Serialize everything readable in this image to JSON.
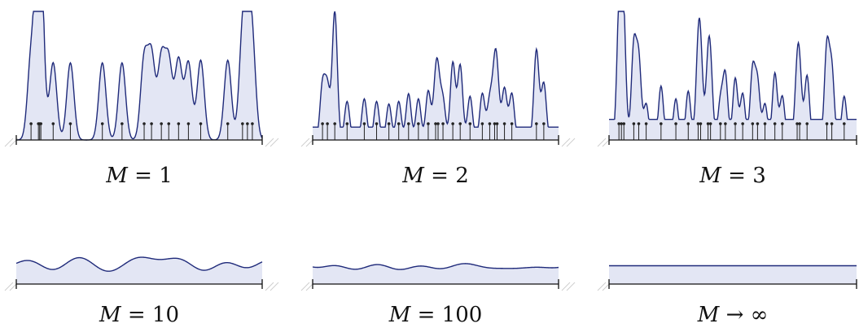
{
  "panels": [
    {
      "id": "m1",
      "caption_var": "M",
      "caption_op": " = ",
      "caption_val": "1",
      "mode": "peaks",
      "width": 6.2,
      "points": [
        0.06,
        0.09,
        0.095,
        0.1,
        0.15,
        0.22,
        0.35,
        0.43,
        0.52,
        0.55,
        0.59,
        0.62,
        0.66,
        0.7,
        0.75,
        0.86,
        0.92,
        0.94,
        0.96
      ],
      "heights": [
        0.62,
        0.98,
        0.58,
        0.45,
        0.6,
        0.6,
        0.6,
        0.6,
        0.62,
        0.64,
        0.62,
        0.6,
        0.62,
        0.6,
        0.62,
        0.62,
        0.72,
        0.7,
        0.66
      ]
    },
    {
      "id": "m2",
      "caption_var": "M",
      "caption_op": " = ",
      "caption_val": "2",
      "mode": "peaks",
      "width": 4.4,
      "points": [
        0.04,
        0.06,
        0.09,
        0.14,
        0.21,
        0.26,
        0.31,
        0.35,
        0.39,
        0.43,
        0.47,
        0.5,
        0.51,
        0.53,
        0.57,
        0.6,
        0.64,
        0.69,
        0.72,
        0.74,
        0.75,
        0.78,
        0.81,
        0.91,
        0.94
      ],
      "heights": [
        0.42,
        0.4,
        1.0,
        0.3,
        0.32,
        0.3,
        0.28,
        0.3,
        0.36,
        0.32,
        0.38,
        0.36,
        0.34,
        0.3,
        0.6,
        0.58,
        0.34,
        0.36,
        0.3,
        0.4,
        0.38,
        0.4,
        0.36,
        0.7,
        0.44
      ],
      "floor": 0.1
    },
    {
      "id": "m3",
      "caption_var": "M",
      "caption_op": " = ",
      "caption_val": "3",
      "mode": "peaks",
      "width": 4.2,
      "points": [
        0.04,
        0.05,
        0.06,
        0.1,
        0.12,
        0.15,
        0.21,
        0.27,
        0.32,
        0.36,
        0.37,
        0.4,
        0.41,
        0.45,
        0.47,
        0.51,
        0.54,
        0.58,
        0.6,
        0.63,
        0.67,
        0.7,
        0.76,
        0.77,
        0.8,
        0.88,
        0.9,
        0.95
      ],
      "heights": [
        0.72,
        0.7,
        0.62,
        0.72,
        0.62,
        0.28,
        0.42,
        0.32,
        0.38,
        0.56,
        0.52,
        0.48,
        0.44,
        0.3,
        0.5,
        0.48,
        0.36,
        0.54,
        0.44,
        0.28,
        0.52,
        0.34,
        0.44,
        0.42,
        0.5,
        0.72,
        0.54,
        0.34
      ],
      "floor": 0.16
    },
    {
      "id": "m10",
      "caption_var": "M",
      "caption_op": " = ",
      "caption_val": "10",
      "mode": "wave",
      "base": 0.34,
      "amp": 0.17,
      "seed": 7
    },
    {
      "id": "m100",
      "caption_var": "M",
      "caption_op": " = ",
      "caption_val": "100",
      "mode": "wave",
      "base": 0.28,
      "amp": 0.05,
      "seed": 3
    },
    {
      "id": "minf",
      "caption_var": "M",
      "caption_op": " → ",
      "caption_val": "∞",
      "mode": "flat",
      "base": 0.3
    }
  ],
  "colors": {
    "curve": "#1f2a7a",
    "fill": "#e3e6f4",
    "axis": "#111111",
    "stem": "#222222",
    "hatch": "#cfcfcf"
  }
}
